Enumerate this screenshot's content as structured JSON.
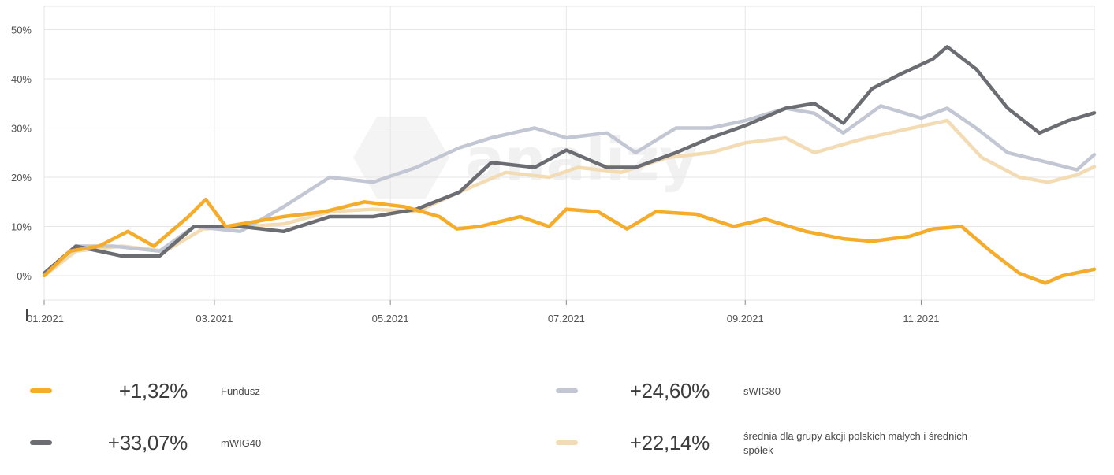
{
  "legend": {
    "items": [
      {
        "value": "+1,32%",
        "name": "Fundusz",
        "color": "#f5ac2b"
      },
      {
        "value": "+24,60%",
        "name": "sWIG80",
        "color": "#c3c7d3"
      },
      {
        "value": "+33,07%",
        "name": "mWIG40",
        "color": "#6b6d72"
      },
      {
        "value": "+22,14%",
        "name": "średnia dla grupy akcji polskich małych i średnich spółek",
        "color": "#f3dcb4"
      }
    ]
  },
  "watermark": {
    "text": "analizy",
    "icon": "analizy-logo-icon"
  },
  "chart_data": {
    "type": "line",
    "title": "",
    "xlabel": "",
    "ylabel": "",
    "x_ticks": [
      "01.2021",
      "03.2021",
      "05.2021",
      "07.2021",
      "09.2021",
      "11.2021"
    ],
    "y_ticks": [
      "50%",
      "40%",
      "30%",
      "20%",
      "10%",
      "0%"
    ],
    "xlim": [
      "2021-01-01",
      "2021-12-31"
    ],
    "ylim": [
      -5,
      55
    ],
    "grid": true,
    "legend_position": "bottom",
    "series": [
      {
        "name": "Fundusz",
        "color": "#f5ac2b",
        "points": [
          [
            "2021-01-01",
            0
          ],
          [
            "2021-01-10",
            5
          ],
          [
            "2021-01-20",
            6
          ],
          [
            "2021-01-30",
            9
          ],
          [
            "2021-02-08",
            6
          ],
          [
            "2021-02-20",
            12
          ],
          [
            "2021-02-26",
            15.5
          ],
          [
            "2021-03-05",
            10
          ],
          [
            "2021-03-15",
            11
          ],
          [
            "2021-03-25",
            12
          ],
          [
            "2021-04-08",
            13
          ],
          [
            "2021-04-22",
            15
          ],
          [
            "2021-05-06",
            14
          ],
          [
            "2021-05-18",
            12
          ],
          [
            "2021-05-24",
            9.5
          ],
          [
            "2021-06-01",
            10
          ],
          [
            "2021-06-15",
            12
          ],
          [
            "2021-06-25",
            10
          ],
          [
            "2021-07-01",
            13.5
          ],
          [
            "2021-07-12",
            13
          ],
          [
            "2021-07-22",
            9.5
          ],
          [
            "2021-08-01",
            13
          ],
          [
            "2021-08-15",
            12.5
          ],
          [
            "2021-08-28",
            10
          ],
          [
            "2021-09-08",
            11.5
          ],
          [
            "2021-09-22",
            9
          ],
          [
            "2021-10-05",
            7.5
          ],
          [
            "2021-10-15",
            7
          ],
          [
            "2021-10-28",
            8
          ],
          [
            "2021-11-05",
            9.5
          ],
          [
            "2021-11-15",
            10
          ],
          [
            "2021-11-25",
            5
          ],
          [
            "2021-12-05",
            0.5
          ],
          [
            "2021-12-14",
            -1.5
          ],
          [
            "2021-12-20",
            0
          ],
          [
            "2021-12-31",
            1.32
          ]
        ]
      },
      {
        "name": "sWIG80",
        "color": "#c3c7d3",
        "points": [
          [
            "2021-01-01",
            0.5
          ],
          [
            "2021-01-12",
            6
          ],
          [
            "2021-01-25",
            6
          ],
          [
            "2021-02-10",
            5
          ],
          [
            "2021-02-22",
            10
          ],
          [
            "2021-03-10",
            9
          ],
          [
            "2021-03-25",
            14
          ],
          [
            "2021-04-10",
            20
          ],
          [
            "2021-04-25",
            19
          ],
          [
            "2021-05-10",
            22
          ],
          [
            "2021-05-25",
            26
          ],
          [
            "2021-06-05",
            28
          ],
          [
            "2021-06-20",
            30
          ],
          [
            "2021-07-01",
            28
          ],
          [
            "2021-07-15",
            29
          ],
          [
            "2021-07-25",
            25
          ],
          [
            "2021-08-08",
            30
          ],
          [
            "2021-08-20",
            30
          ],
          [
            "2021-09-01",
            31.5
          ],
          [
            "2021-09-15",
            34
          ],
          [
            "2021-09-25",
            33
          ],
          [
            "2021-10-05",
            29
          ],
          [
            "2021-10-18",
            34.5
          ],
          [
            "2021-11-01",
            32
          ],
          [
            "2021-11-10",
            34
          ],
          [
            "2021-11-20",
            30
          ],
          [
            "2021-12-01",
            25
          ],
          [
            "2021-12-15",
            23
          ],
          [
            "2021-12-25",
            21.5
          ],
          [
            "2021-12-31",
            24.6
          ]
        ]
      },
      {
        "name": "mWIG40",
        "color": "#6b6d72",
        "points": [
          [
            "2021-01-01",
            0.5
          ],
          [
            "2021-01-12",
            6
          ],
          [
            "2021-01-28",
            4
          ],
          [
            "2021-02-10",
            4
          ],
          [
            "2021-02-22",
            10
          ],
          [
            "2021-03-10",
            10
          ],
          [
            "2021-03-25",
            9
          ],
          [
            "2021-04-10",
            12
          ],
          [
            "2021-04-25",
            12
          ],
          [
            "2021-05-10",
            13.5
          ],
          [
            "2021-05-25",
            17
          ],
          [
            "2021-06-05",
            23
          ],
          [
            "2021-06-20",
            22
          ],
          [
            "2021-07-01",
            25.5
          ],
          [
            "2021-07-15",
            22
          ],
          [
            "2021-07-25",
            22
          ],
          [
            "2021-08-08",
            25
          ],
          [
            "2021-08-20",
            28
          ],
          [
            "2021-09-01",
            30.5
          ],
          [
            "2021-09-15",
            34
          ],
          [
            "2021-09-25",
            35
          ],
          [
            "2021-10-05",
            31
          ],
          [
            "2021-10-15",
            38
          ],
          [
            "2021-10-25",
            41
          ],
          [
            "2021-11-05",
            44
          ],
          [
            "2021-11-10",
            46.5
          ],
          [
            "2021-11-20",
            42
          ],
          [
            "2021-12-01",
            34
          ],
          [
            "2021-12-12",
            29
          ],
          [
            "2021-12-22",
            31.5
          ],
          [
            "2021-12-31",
            33.07
          ]
        ]
      },
      {
        "name": "średnia dla grupy akcji polskich małych i średnich spółek",
        "color": "#f3dcb4",
        "points": [
          [
            "2021-01-01",
            0
          ],
          [
            "2021-01-12",
            5
          ],
          [
            "2021-01-28",
            6
          ],
          [
            "2021-02-12",
            5
          ],
          [
            "2021-02-25",
            9.5
          ],
          [
            "2021-03-12",
            10
          ],
          [
            "2021-03-25",
            10.5
          ],
          [
            "2021-04-10",
            13
          ],
          [
            "2021-04-25",
            13.5
          ],
          [
            "2021-05-10",
            13
          ],
          [
            "2021-05-25",
            17
          ],
          [
            "2021-06-10",
            21
          ],
          [
            "2021-06-25",
            20
          ],
          [
            "2021-07-05",
            22
          ],
          [
            "2021-07-20",
            21
          ],
          [
            "2021-08-05",
            24
          ],
          [
            "2021-08-20",
            25
          ],
          [
            "2021-09-01",
            27
          ],
          [
            "2021-09-15",
            28
          ],
          [
            "2021-09-25",
            25
          ],
          [
            "2021-10-10",
            27.5
          ],
          [
            "2021-10-25",
            29.5
          ],
          [
            "2021-11-10",
            31.5
          ],
          [
            "2021-11-22",
            24
          ],
          [
            "2021-12-05",
            20
          ],
          [
            "2021-12-15",
            19
          ],
          [
            "2021-12-25",
            20.5
          ],
          [
            "2021-12-31",
            22.14
          ]
        ]
      }
    ]
  }
}
